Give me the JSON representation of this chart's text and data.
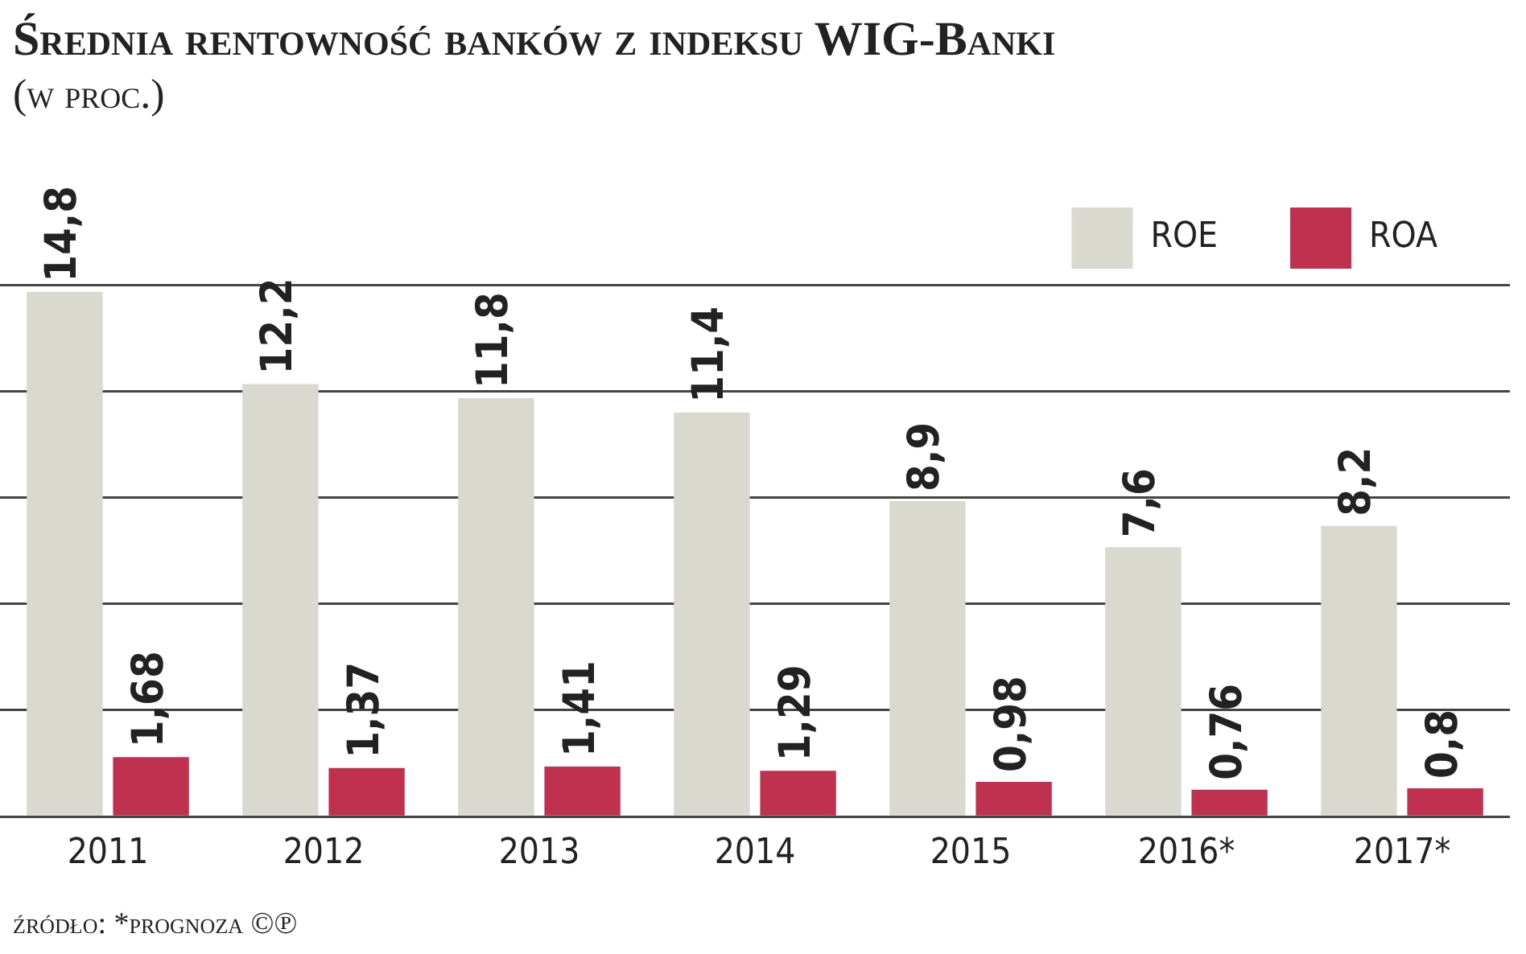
{
  "chart_data": {
    "type": "bar",
    "title": "Średnia rentowność banków z indeksu WIG-Banki",
    "subtitle": "(w proc.)",
    "categories": [
      "2011",
      "2012",
      "2013",
      "2014",
      "2015",
      "2016*",
      "2017*"
    ],
    "series": [
      {
        "name": "ROE",
        "color": "#d9d9cf",
        "values": [
          14.8,
          12.2,
          11.8,
          11.4,
          8.9,
          7.6,
          8.2
        ],
        "value_labels": [
          "14,8",
          "12,2",
          "11,8",
          "11,4",
          "8,9",
          "7,6",
          "8,2"
        ]
      },
      {
        "name": "ROA",
        "color": "#c0304f",
        "values": [
          1.68,
          1.37,
          1.41,
          1.29,
          0.98,
          0.76,
          0.8
        ],
        "value_labels": [
          "1,68",
          "1,37",
          "1,41",
          "1,29",
          "0,98",
          "0,76",
          "0,8"
        ]
      }
    ],
    "ylim": [
      0,
      15
    ],
    "yticks": [
      {
        "value": 0,
        "label": null
      },
      {
        "value": 3,
        "label": null
      },
      {
        "value": 6,
        "label": null
      },
      {
        "value": 9,
        "label": null
      },
      {
        "value": 12,
        "label": null
      },
      {
        "value": 15,
        "label": null
      }
    ],
    "grid": "y",
    "tick_labels": "x",
    "legend": "top right",
    "annotations": [
      "źródło: *prognoza ©℗"
    ]
  }
}
